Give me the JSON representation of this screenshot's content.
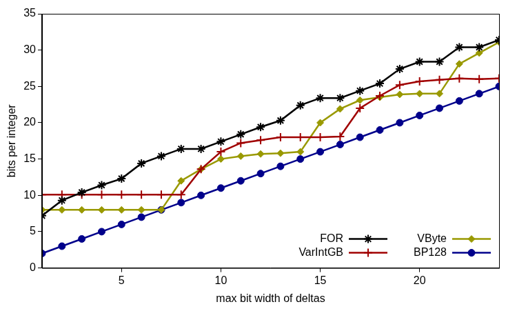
{
  "chart_data": {
    "type": "line",
    "x_label": "max bit width of deltas",
    "y_label": "bits per integer",
    "x": [
      1,
      2,
      3,
      4,
      5,
      6,
      7,
      8,
      9,
      10,
      11,
      12,
      13,
      14,
      15,
      16,
      17,
      18,
      19,
      20,
      21,
      22,
      23,
      24
    ],
    "series": [
      {
        "name": "FOR",
        "color": "#000000",
        "marker": "star",
        "values": [
          7.2,
          9.3,
          10.4,
          11.4,
          12.3,
          14.4,
          15.4,
          16.4,
          16.4,
          17.4,
          18.4,
          19.4,
          20.3,
          22.4,
          23.4,
          23.4,
          24.4,
          25.4,
          27.4,
          28.4,
          28.4,
          30.4,
          30.4,
          31.4
        ]
      },
      {
        "name": "VarIntGB",
        "color": "#a00000",
        "marker": "plus",
        "values": [
          10.1,
          10.1,
          10.1,
          10.1,
          10.1,
          10.1,
          10.1,
          10.1,
          13.6,
          16,
          17.2,
          17.6,
          18,
          18,
          18,
          18.1,
          22,
          23.7,
          25.2,
          25.7,
          25.9,
          26.1,
          26,
          26.1
        ]
      },
      {
        "name": "VByte",
        "color": "#999900",
        "marker": "diamond",
        "values": [
          8,
          8,
          8,
          8,
          8,
          8,
          8,
          12,
          13.6,
          15,
          15.4,
          15.7,
          15.8,
          16,
          20,
          21.9,
          23.1,
          23.5,
          23.9,
          24,
          24,
          28.1,
          29.6,
          31.1
        ]
      },
      {
        "name": "BP128",
        "color": "#00008b",
        "marker": "circle",
        "values": [
          2,
          3,
          4,
          5,
          6,
          7,
          8,
          9,
          10,
          11,
          12,
          13,
          14,
          15,
          16,
          17,
          18,
          19,
          20,
          21,
          22,
          23,
          24,
          25
        ]
      }
    ],
    "xlim": [
      1,
      24
    ],
    "xticks": [
      5,
      10,
      15,
      20
    ],
    "ylim": [
      0,
      35
    ],
    "yticks": [
      0,
      5,
      10,
      15,
      20,
      25,
      30,
      35
    ],
    "grid": false,
    "legend": "lower right"
  }
}
